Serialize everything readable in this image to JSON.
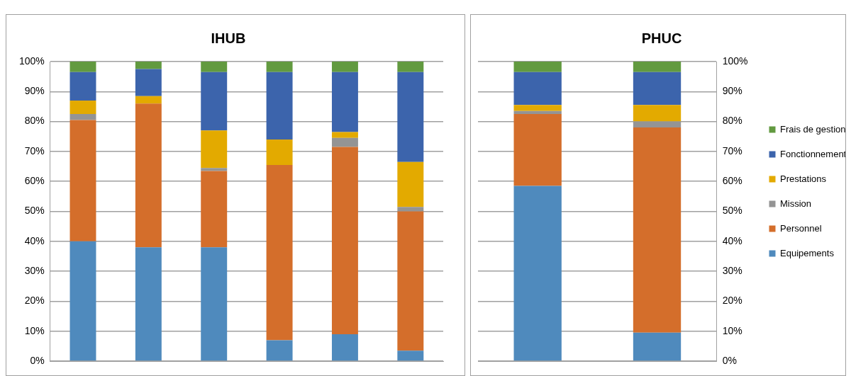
{
  "chart_data": [
    {
      "type": "bar",
      "title": "IHUB",
      "stacked": true,
      "grid": "y",
      "categories": [
        null,
        null,
        null,
        null,
        null,
        null
      ],
      "ylim": [
        0,
        100
      ],
      "yticks": [
        {
          "value": 0,
          "label": "0%"
        },
        {
          "value": 10,
          "label": "10%"
        },
        {
          "value": 20,
          "label": "20%"
        },
        {
          "value": 30,
          "label": "30%"
        },
        {
          "value": 40,
          "label": "40%"
        },
        {
          "value": 50,
          "label": "50%"
        },
        {
          "value": 60,
          "label": "60%"
        },
        {
          "value": 70,
          "label": "70%"
        },
        {
          "value": 80,
          "label": "80%"
        },
        {
          "value": 90,
          "label": "90%"
        },
        {
          "value": 100,
          "label": "100%"
        }
      ],
      "series": [
        {
          "color": "#4f8abd",
          "values": [
            40,
            38,
            38,
            7,
            9,
            3.5
          ]
        },
        {
          "color": "#d46e2b",
          "values": [
            40.5,
            48,
            25.5,
            58.5,
            62.5,
            46.5
          ]
        },
        {
          "color": "#949494",
          "values": [
            2,
            0,
            1,
            0,
            3,
            1.5
          ]
        },
        {
          "color": "#e3aa00",
          "values": [
            4.5,
            2.5,
            12.5,
            8.5,
            2,
            15
          ]
        },
        {
          "color": "#3c64ac",
          "values": [
            9.5,
            9,
            19.5,
            22.5,
            20,
            30
          ]
        },
        {
          "color": "#629a40",
          "values": [
            3.5,
            2.5,
            3.5,
            3.5,
            3.5,
            3.5
          ]
        }
      ]
    },
    {
      "type": "bar",
      "title": "PHUC",
      "stacked": true,
      "grid": "y",
      "legend": "right",
      "categories": [
        null,
        null
      ],
      "ylim": [
        0,
        100
      ],
      "yticks": [
        {
          "value": 0,
          "label": "0%"
        },
        {
          "value": 10,
          "label": "10%"
        },
        {
          "value": 20,
          "label": "20%"
        },
        {
          "value": 30,
          "label": "30%"
        },
        {
          "value": 40,
          "label": "40%"
        },
        {
          "value": 50,
          "label": "50%"
        },
        {
          "value": 60,
          "label": "60%"
        },
        {
          "value": 70,
          "label": "70%"
        },
        {
          "value": 80,
          "label": "80%"
        },
        {
          "value": 90,
          "label": "90%"
        },
        {
          "value": 100,
          "label": "100%"
        }
      ],
      "series": [
        {
          "name": "Equipements",
          "color": "#4f8abd",
          "values": [
            58.5,
            9.5
          ]
        },
        {
          "name": "Personnel",
          "color": "#d46e2b",
          "values": [
            24,
            68.5
          ]
        },
        {
          "name": "Mission",
          "color": "#949494",
          "values": [
            1,
            2
          ]
        },
        {
          "name": "Prestations",
          "color": "#e3aa00",
          "values": [
            2,
            5.5
          ]
        },
        {
          "name": "Fonctionnement",
          "color": "#3c64ac",
          "values": [
            11,
            11
          ]
        },
        {
          "name": "Frais de gestion",
          "color": "#629a40",
          "values": [
            3.5,
            3.5
          ]
        }
      ]
    }
  ]
}
